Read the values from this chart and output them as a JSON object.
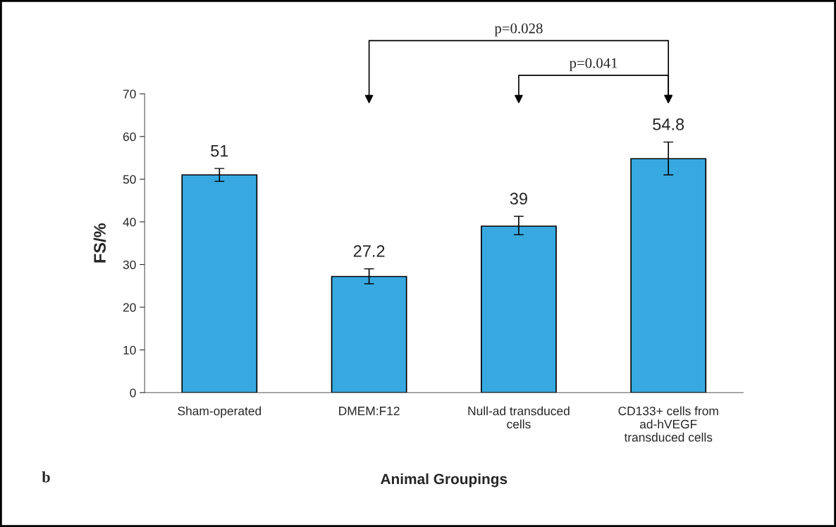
{
  "chart_data": {
    "type": "bar",
    "categories": [
      "Sham-operated",
      "DMEM:F12",
      "Null-ad transduced\ncells",
      "CD133+ cells from\nad-hVEGF\ntransduced cells"
    ],
    "values": [
      51,
      27.2,
      39,
      54.8
    ],
    "errors": [
      [
        49.5,
        52.5
      ],
      [
        25.5,
        29
      ],
      [
        37,
        41.3
      ],
      [
        51,
        58.7
      ]
    ],
    "color": "#37a9e0",
    "data_labels": true,
    "xlabel": "Animal Groupings",
    "ylabel": "FS/%",
    "ylim": [
      0,
      70
    ],
    "yticks": [
      0,
      10,
      20,
      30,
      40,
      50,
      60,
      70
    ],
    "grid": false,
    "legend": false,
    "annotations": [
      "p=0.028",
      "p=0.041",
      "b"
    ]
  }
}
